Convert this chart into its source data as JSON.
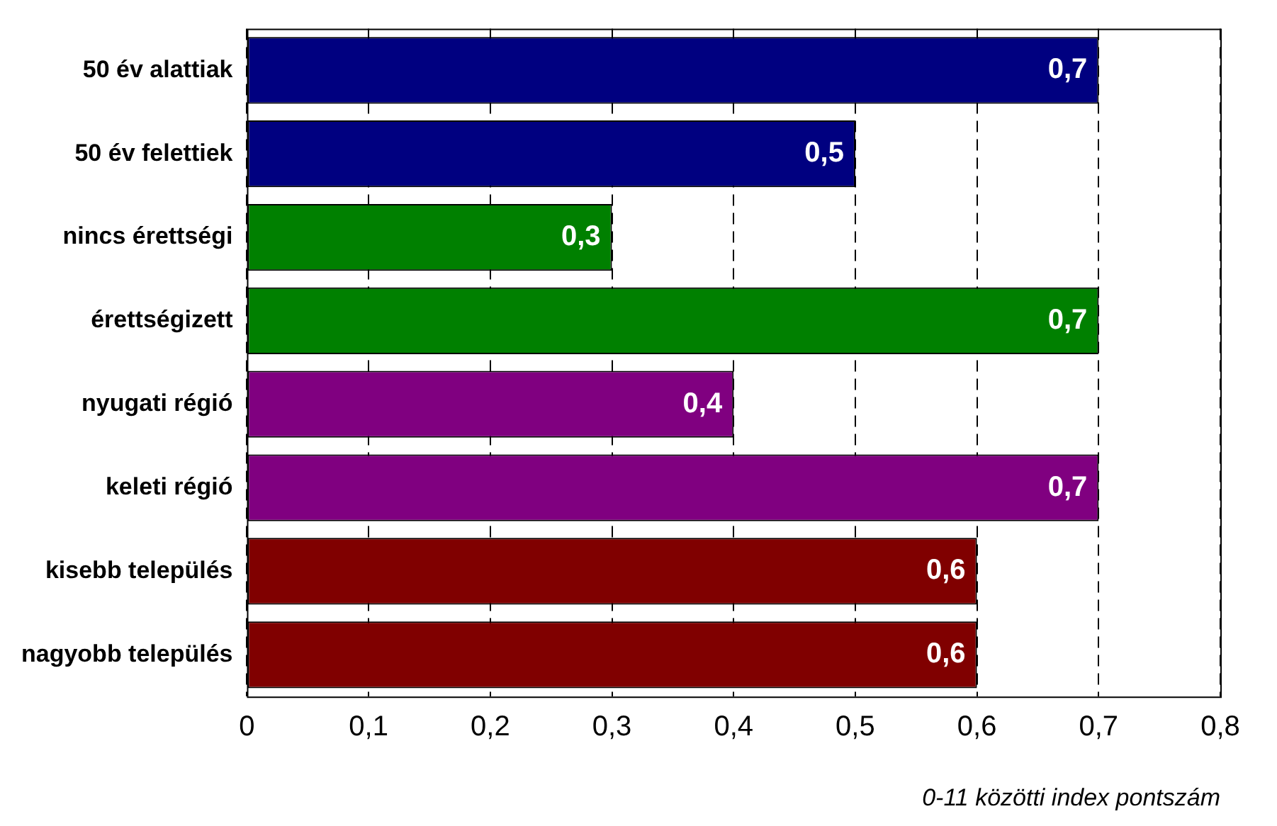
{
  "chart_data": {
    "type": "bar",
    "orientation": "horizontal",
    "xlabel": "0-11 közötti index pontszám",
    "categories": [
      "50 év alattiak",
      "50 év felettiek",
      "nincs érettségi",
      "érettségizett",
      "nyugati régió",
      "keleti régió",
      "kisebb település",
      "nagyobb település"
    ],
    "values": [
      0.7,
      0.5,
      0.3,
      0.7,
      0.4,
      0.7,
      0.6,
      0.6
    ],
    "colors": [
      "#000080",
      "#000080",
      "#008000",
      "#008000",
      "#800080",
      "#800080",
      "#800000",
      "#800000"
    ],
    "xlim": [
      0,
      0.8
    ],
    "xticks": [
      {
        "value": 0,
        "label": "0"
      },
      {
        "value": 0.1,
        "label": "0,1"
      },
      {
        "value": 0.2,
        "label": "0,2"
      },
      {
        "value": 0.3,
        "label": "0,3"
      },
      {
        "value": 0.4,
        "label": "0,4"
      },
      {
        "value": 0.5,
        "label": "0,5"
      },
      {
        "value": 0.6,
        "label": "0,6"
      },
      {
        "value": 0.7,
        "label": "0,7"
      },
      {
        "value": 0.8,
        "label": "0,8"
      }
    ],
    "value_labels": [
      "0,7",
      "0,5",
      "0,3",
      "0,7",
      "0,4",
      "0,7",
      "0,6",
      "0,6"
    ],
    "grid": "x",
    "legend": false
  }
}
